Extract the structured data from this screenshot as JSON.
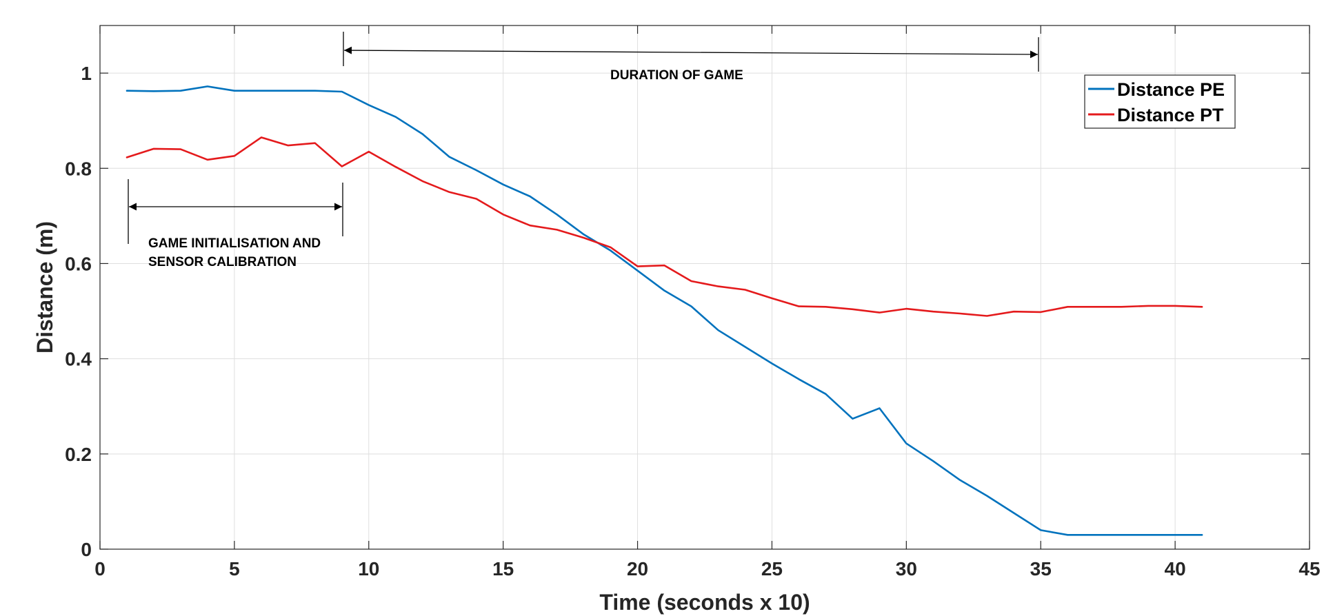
{
  "chart_data": {
    "type": "line",
    "title": "",
    "xlabel": "Time (seconds x 10)",
    "ylabel": "Distance (m)",
    "xlim": [
      0,
      45
    ],
    "ylim": [
      0,
      1.1
    ],
    "x_ticks": [
      0,
      5,
      10,
      15,
      20,
      25,
      30,
      35,
      40,
      45
    ],
    "y_ticks": [
      0,
      0.2,
      0.4,
      0.6,
      0.8,
      1
    ],
    "x_tick_labels": [
      "0",
      "5",
      "10",
      "15",
      "20",
      "25",
      "30",
      "35",
      "40",
      "45"
    ],
    "y_tick_labels": [
      "0",
      "0.2",
      "0.4",
      "0.6",
      "0.8",
      "1"
    ],
    "grid": true,
    "legend_position": "top-right",
    "x": [
      1,
      2,
      3,
      4,
      5,
      6,
      7,
      8,
      9,
      10,
      11,
      12,
      13,
      14,
      15,
      16,
      17,
      18,
      19,
      20,
      21,
      22,
      23,
      24,
      25,
      26,
      27,
      28,
      29,
      30,
      31,
      32,
      33,
      34,
      35,
      36,
      37,
      38,
      39,
      40,
      41
    ],
    "series": [
      {
        "name": "Distance PE",
        "color": "#0072BD",
        "values": [
          0.963,
          0.962,
          0.963,
          0.972,
          0.963,
          0.963,
          0.963,
          0.963,
          0.961,
          0.933,
          0.908,
          0.872,
          0.824,
          0.796,
          0.766,
          0.741,
          0.703,
          0.661,
          0.627,
          0.585,
          0.543,
          0.51,
          0.46,
          0.425,
          0.39,
          0.357,
          0.326,
          0.274,
          0.296,
          0.222,
          0.185,
          0.145,
          0.112,
          0.076,
          0.04,
          0.03,
          0.03,
          0.03,
          0.03,
          0.03,
          0.03
        ]
      },
      {
        "name": "Distance PT",
        "color": "#E41A1C",
        "values": [
          0.823,
          0.841,
          0.84,
          0.818,
          0.826,
          0.865,
          0.848,
          0.853,
          0.804,
          0.835,
          0.803,
          0.773,
          0.75,
          0.736,
          0.703,
          0.68,
          0.671,
          0.654,
          0.634,
          0.594,
          0.596,
          0.563,
          0.552,
          0.545,
          0.527,
          0.51,
          0.509,
          0.504,
          0.497,
          0.505,
          0.499,
          0.495,
          0.49,
          0.499,
          0.498,
          0.509,
          0.509,
          0.509,
          0.511,
          0.511,
          0.509
        ]
      }
    ],
    "annotations": [
      {
        "text": "DURATION OF GAME",
        "x_range": [
          9,
          35
        ]
      },
      {
        "text_lines": [
          "GAME INITIALISATION AND",
          "SENSOR CALIBRATION"
        ],
        "x_range": [
          1,
          9
        ]
      }
    ]
  }
}
